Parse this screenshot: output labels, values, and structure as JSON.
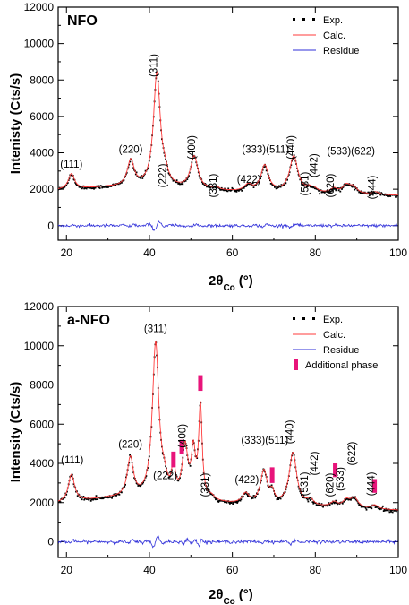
{
  "chart_data": [
    {
      "type": "line",
      "panel_label": "NFO",
      "xlabel_main": "2θ",
      "xlabel_sub": "Co",
      "xlabel_unit": "(°)",
      "ylabel": "Intenisty (Cts/s)",
      "xlim": [
        18,
        100
      ],
      "ylim": [
        -800,
        12000
      ],
      "x_ticks": [
        20,
        40,
        60,
        80,
        100
      ],
      "y_ticks": [
        0,
        2000,
        4000,
        6000,
        8000,
        10000,
        12000
      ],
      "legend": [
        {
          "name": "Exp.",
          "style": "dots",
          "color": "#000000"
        },
        {
          "name": "Calc.",
          "style": "line",
          "color": "#ff3b3b"
        },
        {
          "name": "Residue",
          "style": "line",
          "color": "#2f2fd9"
        }
      ],
      "baseline": [
        [
          18,
          1950
        ],
        [
          30,
          2100
        ],
        [
          45,
          2000
        ],
        [
          60,
          1850
        ],
        [
          80,
          1750
        ],
        [
          100,
          1650
        ]
      ],
      "peaks": [
        {
          "label": "(111)",
          "x": 21.2,
          "height": 850,
          "width": 0.9
        },
        {
          "label": "(220)",
          "x": 35.5,
          "height": 1450,
          "width": 1.0
        },
        {
          "label": "(311)",
          "x": 41.8,
          "height": 6300,
          "width": 1.0
        },
        {
          "label": "(222)",
          "x": 43.8,
          "height": 500,
          "width": 0.8
        },
        {
          "label": "(400)",
          "x": 50.8,
          "height": 1800,
          "width": 1.1
        },
        {
          "label": "(331)",
          "x": 56.0,
          "height": 150,
          "width": 0.9
        },
        {
          "label": "(422)",
          "x": 63.8,
          "height": 350,
          "width": 1.1
        },
        {
          "label": "(333)(511)",
          "x": 67.8,
          "height": 1450,
          "width": 1.1
        },
        {
          "label": "(440)",
          "x": 74.8,
          "height": 2000,
          "width": 1.2
        },
        {
          "label": "(531)",
          "x": 78.5,
          "height": 200,
          "width": 0.9
        },
        {
          "label": "(442)",
          "x": 79.8,
          "height": 180,
          "width": 0.9
        },
        {
          "label": "(620)",
          "x": 84.5,
          "height": 250,
          "width": 1.0
        },
        {
          "label": "(533)",
          "x": 87.5,
          "height": 450,
          "width": 1.1
        },
        {
          "label": "(622)",
          "x": 89.2,
          "height": 350,
          "width": 1.1
        },
        {
          "label": "(444)",
          "x": 94.5,
          "height": 150,
          "width": 1.0
        }
      ],
      "peak_label_positions": [
        {
          "label": "(111)",
          "x": 21.2,
          "y": 3200,
          "rotate": false
        },
        {
          "label": "(220)",
          "x": 35.5,
          "y": 4000,
          "rotate": false
        },
        {
          "label": "(311)",
          "x": 41.8,
          "y": 8800,
          "rotate": true
        },
        {
          "label": "(222)",
          "x": 44.0,
          "y": 2750,
          "rotate": true
        },
        {
          "label": "(400)",
          "x": 51.0,
          "y": 4300,
          "rotate": true
        },
        {
          "label": "(331)",
          "x": 56.2,
          "y": 2200,
          "rotate": true
        },
        {
          "label": "(422)",
          "x": 64.0,
          "y": 2350,
          "rotate": false
        },
        {
          "label": "(333)(511)",
          "x": 68.0,
          "y": 4000,
          "rotate": false
        },
        {
          "label": "(440)",
          "x": 75.0,
          "y": 4300,
          "rotate": true
        },
        {
          "label": "(531)",
          "x": 78.3,
          "y": 2300,
          "rotate": true
        },
        {
          "label": "(442)",
          "x": 80.5,
          "y": 3300,
          "rotate": true
        },
        {
          "label": "(620)",
          "x": 84.5,
          "y": 2200,
          "rotate": true
        },
        {
          "label": "(533)(622)",
          "x": 88.6,
          "y": 3900,
          "rotate": false
        },
        {
          "label": "(444)",
          "x": 94.5,
          "y": 2100,
          "rotate": true
        }
      ],
      "residue_level": 0
    },
    {
      "type": "line",
      "panel_label": "a-NFO",
      "xlabel_main": "2θ",
      "xlabel_sub": "Co",
      "xlabel_unit": "(°)",
      "ylabel": "Intensity (Cts/s)",
      "xlim": [
        18,
        100
      ],
      "ylim": [
        -800,
        12000
      ],
      "x_ticks": [
        20,
        40,
        60,
        80,
        100
      ],
      "y_ticks": [
        0,
        2000,
        4000,
        6000,
        8000,
        10000,
        12000
      ],
      "legend": [
        {
          "name": "Exp.",
          "style": "dots",
          "color": "#000000"
        },
        {
          "name": "Calc.",
          "style": "line",
          "color": "#ff3b3b"
        },
        {
          "name": "Residue",
          "style": "line",
          "color": "#2f2fd9"
        },
        {
          "name": "Additional phase",
          "style": "bar",
          "color": "#e8147a"
        }
      ],
      "baseline": [
        [
          18,
          1950
        ],
        [
          30,
          2200
        ],
        [
          45,
          2100
        ],
        [
          60,
          1900
        ],
        [
          80,
          1750
        ],
        [
          100,
          1600
        ]
      ],
      "peaks": [
        {
          "label": "(111)",
          "x": 21.2,
          "height": 1400,
          "width": 0.9
        },
        {
          "label": "(220)",
          "x": 35.4,
          "height": 2000,
          "width": 0.9
        },
        {
          "label": "(311)",
          "x": 41.5,
          "height": 7900,
          "width": 0.95
        },
        {
          "label": "(222)",
          "x": 43.6,
          "height": 600,
          "width": 0.8
        },
        {
          "label": "extra",
          "x": 45.8,
          "height": 1500,
          "width": 0.5
        },
        {
          "label": "(400)",
          "x": 48.6,
          "height": 2600,
          "width": 0.8
        },
        {
          "label": "extra",
          "x": 50.6,
          "height": 2300,
          "width": 0.6
        },
        {
          "label": "extra",
          "x": 52.3,
          "height": 4700,
          "width": 0.5
        },
        {
          "label": "(331)",
          "x": 55.0,
          "height": 200,
          "width": 0.9
        },
        {
          "label": "(422)",
          "x": 63.2,
          "height": 500,
          "width": 1.0
        },
        {
          "label": "(333)(511)",
          "x": 67.6,
          "height": 1700,
          "width": 1.0
        },
        {
          "label": "extra",
          "x": 69.6,
          "height": 500,
          "width": 0.6
        },
        {
          "label": "(440)",
          "x": 74.6,
          "height": 2700,
          "width": 1.1
        },
        {
          "label": "(531)",
          "x": 78.8,
          "height": 300,
          "width": 0.9
        },
        {
          "label": "(620)",
          "x": 84.5,
          "height": 250,
          "width": 1.0
        },
        {
          "label": "(533)",
          "x": 87.5,
          "height": 350,
          "width": 1.0
        },
        {
          "label": "(622)",
          "x": 89.4,
          "height": 500,
          "width": 1.1
        },
        {
          "label": "(444)",
          "x": 94.3,
          "height": 200,
          "width": 1.0
        }
      ],
      "peak_label_positions": [
        {
          "label": "(111)",
          "x": 21.4,
          "y": 4000,
          "rotate": false
        },
        {
          "label": "(220)",
          "x": 35.4,
          "y": 4800,
          "rotate": false
        },
        {
          "label": "(311)",
          "x": 41.5,
          "y": 10700,
          "rotate": false
        },
        {
          "label": "(222)",
          "x": 43.8,
          "y": 3200,
          "rotate": false
        },
        {
          "label": "(400)",
          "x": 48.7,
          "y": 5400,
          "rotate": true
        },
        {
          "label": "(331)",
          "x": 54.3,
          "y": 2900,
          "rotate": true
        },
        {
          "label": "(422)",
          "x": 63.5,
          "y": 3000,
          "rotate": false
        },
        {
          "label": "(333)(511)",
          "x": 67.8,
          "y": 5000,
          "rotate": false
        },
        {
          "label": "(440)",
          "x": 74.6,
          "y": 5600,
          "rotate": true
        },
        {
          "label": "(531)",
          "x": 78.2,
          "y": 2950,
          "rotate": true
        },
        {
          "label": "(442)",
          "x": 80.6,
          "y": 4000,
          "rotate": true
        },
        {
          "label": "(620)",
          "x": 84.4,
          "y": 2900,
          "rotate": true
        },
        {
          "label": "(533)",
          "x": 86.8,
          "y": 3200,
          "rotate": true
        },
        {
          "label": "(622)",
          "x": 89.6,
          "y": 4500,
          "rotate": true
        },
        {
          "label": "(444)",
          "x": 94.3,
          "y": 2950,
          "rotate": true
        }
      ],
      "additional_phase_markers": [
        {
          "x": 45.8,
          "y_low": 3800,
          "y_high": 4600
        },
        {
          "x": 47.8,
          "y_low": 4500,
          "y_high": 5200
        },
        {
          "x": 52.3,
          "y_low": 7700,
          "y_high": 8500
        },
        {
          "x": 69.6,
          "y_low": 3000,
          "y_high": 3800
        },
        {
          "x": 84.8,
          "y_low": 3300,
          "y_high": 4000
        },
        {
          "x": 94.3,
          "y_low": 2500,
          "y_high": 3200
        }
      ],
      "residue_level": 0
    }
  ]
}
